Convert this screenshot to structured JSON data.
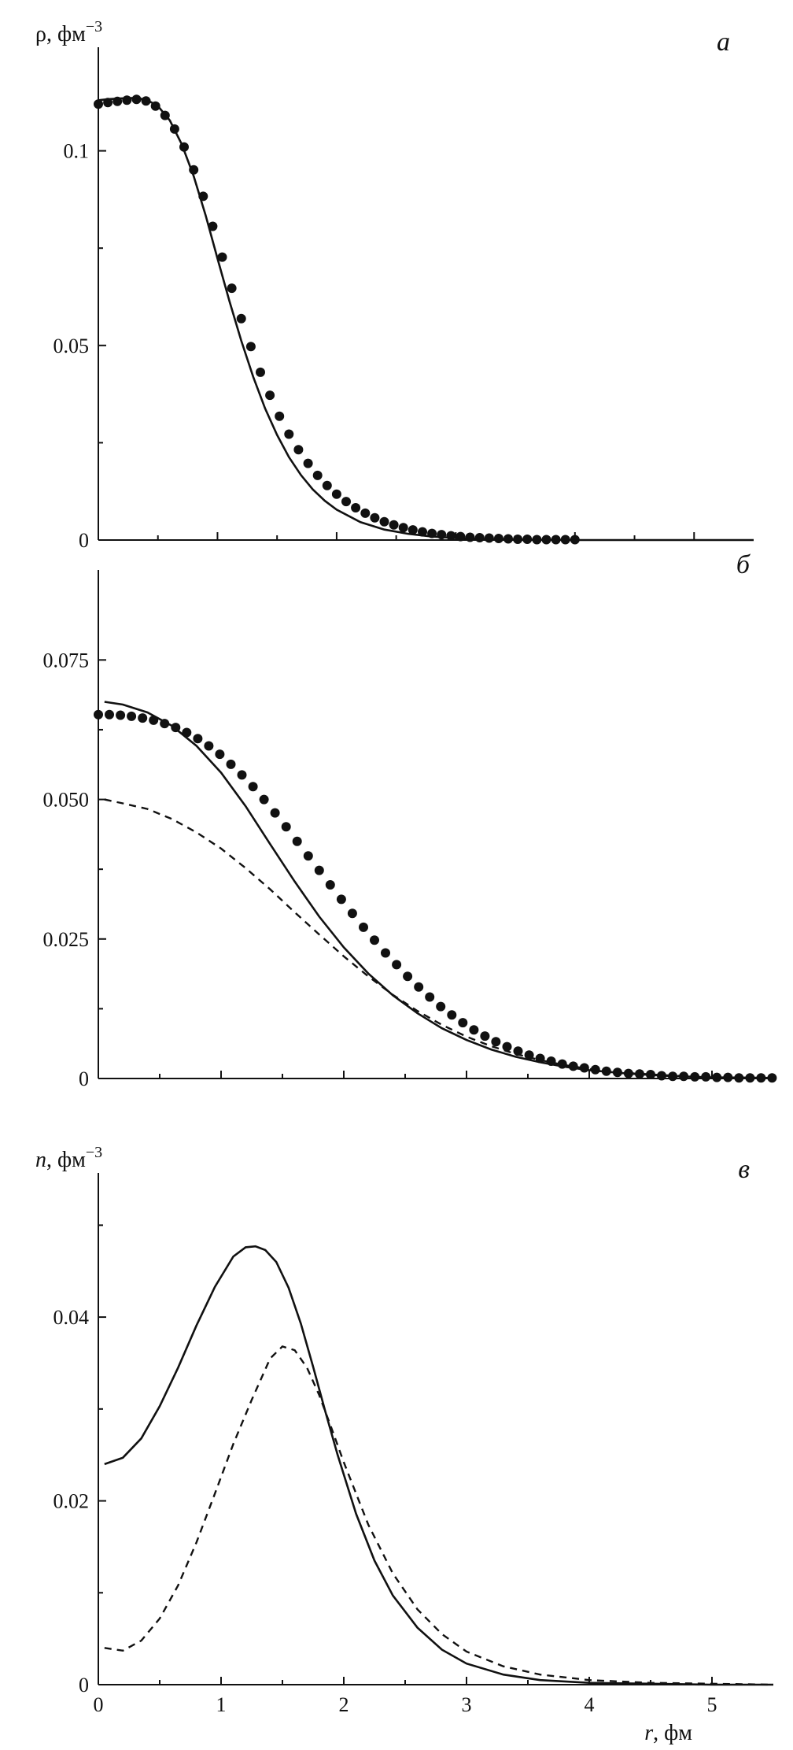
{
  "chart_data": [
    {
      "type": "line",
      "panel_label": "а",
      "ylabel": "ρ, фм",
      "ylabel_sup": "−3",
      "xlabel": "",
      "xlim": [
        0,
        5.5
      ],
      "ylim": [
        0,
        0.125
      ],
      "x_ticks": [
        0,
        0.5,
        1,
        1.5,
        2,
        2.5,
        3,
        3.5,
        4,
        4.5,
        5
      ],
      "x_tick_labels": [],
      "y_ticks": [
        0,
        0.025,
        0.05,
        0.075,
        0.1
      ],
      "y_tick_labels": [
        "0",
        "",
        "0.05",
        "",
        "0.1"
      ],
      "series": [
        {
          "style": "solid",
          "x": [
            0.0,
            0.1,
            0.2,
            0.3,
            0.4,
            0.5,
            0.6,
            0.7,
            0.8,
            0.9,
            1.0,
            1.1,
            1.2,
            1.3,
            1.4,
            1.5,
            1.6,
            1.7,
            1.8,
            1.9,
            2.0,
            2.2,
            2.4,
            2.6,
            2.8,
            3.0,
            3.3,
            3.6,
            4.0,
            4.5,
            5.0,
            5.5
          ],
          "y": [
            0.113,
            0.1133,
            0.1135,
            0.1136,
            0.1132,
            0.1115,
            0.1078,
            0.1017,
            0.0935,
            0.0835,
            0.0723,
            0.0614,
            0.0512,
            0.0419,
            0.0338,
            0.027,
            0.0213,
            0.0167,
            0.013,
            0.0101,
            0.0078,
            0.0046,
            0.0027,
            0.0016,
            0.0009,
            0.0005,
            0.0002,
            0.0001,
            0.0,
            0.0,
            0.0,
            0.0
          ]
        },
        {
          "style": "dots",
          "x": [
            0.0,
            0.08,
            0.16,
            0.24,
            0.32,
            0.4,
            0.48,
            0.56,
            0.64,
            0.72,
            0.8,
            0.88,
            0.96,
            1.04,
            1.12,
            1.2,
            1.28,
            1.36,
            1.44,
            1.52,
            1.6,
            1.68,
            1.76,
            1.84,
            1.92,
            2.0,
            2.08,
            2.16,
            2.24,
            2.32,
            2.4,
            2.48,
            2.56,
            2.64,
            2.72,
            2.8,
            2.88,
            2.96,
            3.04,
            3.12,
            3.2,
            3.28,
            3.36,
            3.44,
            3.52,
            3.6,
            3.68,
            3.76,
            3.84,
            3.92,
            4.0
          ],
          "y": [
            0.112,
            0.1124,
            0.1127,
            0.113,
            0.1132,
            0.1128,
            0.1115,
            0.1091,
            0.1056,
            0.101,
            0.0951,
            0.0883,
            0.0806,
            0.0727,
            0.0647,
            0.0569,
            0.0497,
            0.0431,
            0.0372,
            0.0318,
            0.0272,
            0.0232,
            0.0197,
            0.0166,
            0.014,
            0.0118,
            0.0099,
            0.0083,
            0.0069,
            0.0057,
            0.0047,
            0.0039,
            0.0032,
            0.0026,
            0.0021,
            0.0017,
            0.0014,
            0.0011,
            0.0009,
            0.0007,
            0.0006,
            0.0005,
            0.0004,
            0.0003,
            0.0002,
            0.0002,
            0.0001,
            0.0001,
            0.0001,
            0.0001,
            0.0001
          ]
        }
      ]
    },
    {
      "type": "line",
      "panel_label": "б",
      "ylabel": "",
      "xlabel": "",
      "xlim": [
        0,
        5.5
      ],
      "ylim": [
        0,
        0.09
      ],
      "x_ticks": [
        0,
        0.5,
        1,
        1.5,
        2,
        2.5,
        3,
        3.5,
        4,
        4.5,
        5
      ],
      "x_tick_labels": [],
      "y_ticks": [
        0,
        0.0125,
        0.025,
        0.0375,
        0.05,
        0.0625,
        0.075
      ],
      "y_tick_labels": [
        "0",
        "",
        "0.025",
        "",
        "0.050",
        "",
        "0.075"
      ],
      "series": [
        {
          "style": "solid",
          "x": [
            0.05,
            0.2,
            0.4,
            0.6,
            0.8,
            1.0,
            1.2,
            1.4,
            1.6,
            1.8,
            2.0,
            2.2,
            2.4,
            2.6,
            2.8,
            3.0,
            3.2,
            3.4,
            3.6,
            3.8,
            4.0,
            4.3,
            4.6,
            5.0,
            5.5
          ],
          "y": [
            0.0675,
            0.067,
            0.0656,
            0.0632,
            0.0596,
            0.0548,
            0.0488,
            0.042,
            0.0353,
            0.029,
            0.0235,
            0.0188,
            0.0149,
            0.0117,
            0.009,
            0.0069,
            0.0052,
            0.0039,
            0.0029,
            0.0021,
            0.0015,
            0.0009,
            0.0005,
            0.0002,
            0.0001
          ]
        },
        {
          "style": "dashed",
          "x": [
            0.05,
            0.2,
            0.4,
            0.6,
            0.8,
            1.0,
            1.2,
            1.4,
            1.6,
            1.8,
            2.0,
            2.2,
            2.4,
            2.6,
            2.8,
            3.0,
            3.2,
            3.4,
            3.6,
            3.8,
            4.0,
            4.3,
            4.6,
            5.0,
            5.5
          ],
          "y": [
            0.05,
            0.0493,
            0.0483,
            0.0465,
            0.0441,
            0.0412,
            0.0377,
            0.0339,
            0.0298,
            0.0258,
            0.0219,
            0.0183,
            0.015,
            0.0121,
            0.0096,
            0.0075,
            0.0058,
            0.0044,
            0.0033,
            0.0024,
            0.0017,
            0.001,
            0.0006,
            0.0002,
            0.0001
          ]
        },
        {
          "style": "dots",
          "x": [
            0.0,
            0.09,
            0.18,
            0.27,
            0.36,
            0.45,
            0.54,
            0.63,
            0.72,
            0.81,
            0.9,
            0.99,
            1.08,
            1.17,
            1.26,
            1.35,
            1.44,
            1.53,
            1.62,
            1.71,
            1.8,
            1.89,
            1.98,
            2.07,
            2.16,
            2.25,
            2.34,
            2.43,
            2.52,
            2.61,
            2.7,
            2.79,
            2.88,
            2.97,
            3.06,
            3.15,
            3.24,
            3.33,
            3.42,
            3.51,
            3.6,
            3.69,
            3.78,
            3.87,
            3.96,
            4.05,
            4.14,
            4.23,
            4.32,
            4.41,
            4.5,
            4.59,
            4.68,
            4.77,
            4.86,
            4.95,
            5.04,
            5.13,
            5.22,
            5.31,
            5.4,
            5.49
          ],
          "y": [
            0.0652,
            0.0652,
            0.0651,
            0.0649,
            0.0646,
            0.0642,
            0.0636,
            0.0629,
            0.062,
            0.0609,
            0.0596,
            0.0581,
            0.0563,
            0.0544,
            0.0523,
            0.05,
            0.0476,
            0.0451,
            0.0425,
            0.0399,
            0.0373,
            0.0347,
            0.0321,
            0.0296,
            0.0271,
            0.0248,
            0.0225,
            0.0204,
            0.0183,
            0.0164,
            0.0146,
            0.0129,
            0.0114,
            0.01,
            0.0087,
            0.0076,
            0.0066,
            0.0057,
            0.0049,
            0.0042,
            0.0036,
            0.0031,
            0.0026,
            0.0022,
            0.0019,
            0.0016,
            0.0013,
            0.0011,
            0.0009,
            0.0008,
            0.0007,
            0.0005,
            0.0004,
            0.0004,
            0.0003,
            0.0003,
            0.0002,
            0.0002,
            0.0001,
            0.0001,
            0.0001,
            0.0001
          ]
        }
      ]
    },
    {
      "type": "line",
      "panel_label": "в",
      "ylabel": "n, фм",
      "ylabel_sup": "−3",
      "xlabel": "r, фм",
      "xlim": [
        0,
        5.5
      ],
      "ylim": [
        0,
        0.055
      ],
      "x_ticks": [
        0,
        0.5,
        1,
        1.5,
        2,
        2.5,
        3,
        3.5,
        4,
        4.5,
        5
      ],
      "x_tick_labels": [
        "0",
        "",
        "1",
        "",
        "2",
        "",
        "3",
        "",
        "4",
        "",
        "5"
      ],
      "y_ticks": [
        0,
        0.01,
        0.02,
        0.03,
        0.04,
        0.05
      ],
      "y_tick_labels": [
        "0",
        "",
        "0.02",
        "",
        "0.04",
        ""
      ],
      "series": [
        {
          "style": "solid",
          "x": [
            0.05,
            0.2,
            0.35,
            0.5,
            0.65,
            0.8,
            0.95,
            1.1,
            1.2,
            1.28,
            1.36,
            1.45,
            1.55,
            1.65,
            1.75,
            1.85,
            1.95,
            2.1,
            2.25,
            2.4,
            2.6,
            2.8,
            3.0,
            3.3,
            3.6,
            4.0,
            4.5,
            5.0,
            5.5
          ],
          "y": [
            0.024,
            0.0247,
            0.0268,
            0.0303,
            0.0345,
            0.0391,
            0.0433,
            0.0466,
            0.0476,
            0.0477,
            0.0473,
            0.046,
            0.0432,
            0.0393,
            0.0346,
            0.0297,
            0.025,
            0.0186,
            0.0135,
            0.0097,
            0.0062,
            0.0038,
            0.0023,
            0.0011,
            0.0005,
            0.0002,
            0.0001,
            0.0,
            0.0
          ]
        },
        {
          "style": "dashed",
          "x": [
            0.05,
            0.2,
            0.35,
            0.5,
            0.65,
            0.8,
            0.95,
            1.1,
            1.25,
            1.4,
            1.5,
            1.6,
            1.7,
            1.8,
            1.9,
            2.0,
            2.2,
            2.4,
            2.6,
            2.8,
            3.0,
            3.3,
            3.6,
            4.0,
            4.5,
            5.0,
            5.5
          ],
          "y": [
            0.004,
            0.0037,
            0.0048,
            0.0072,
            0.0108,
            0.0155,
            0.0208,
            0.0262,
            0.031,
            0.0355,
            0.0368,
            0.0364,
            0.0345,
            0.0315,
            0.0279,
            0.0242,
            0.0174,
            0.0121,
            0.0082,
            0.0055,
            0.0036,
            0.002,
            0.0011,
            0.0005,
            0.0002,
            0.0001,
            0.0
          ]
        }
      ]
    }
  ]
}
